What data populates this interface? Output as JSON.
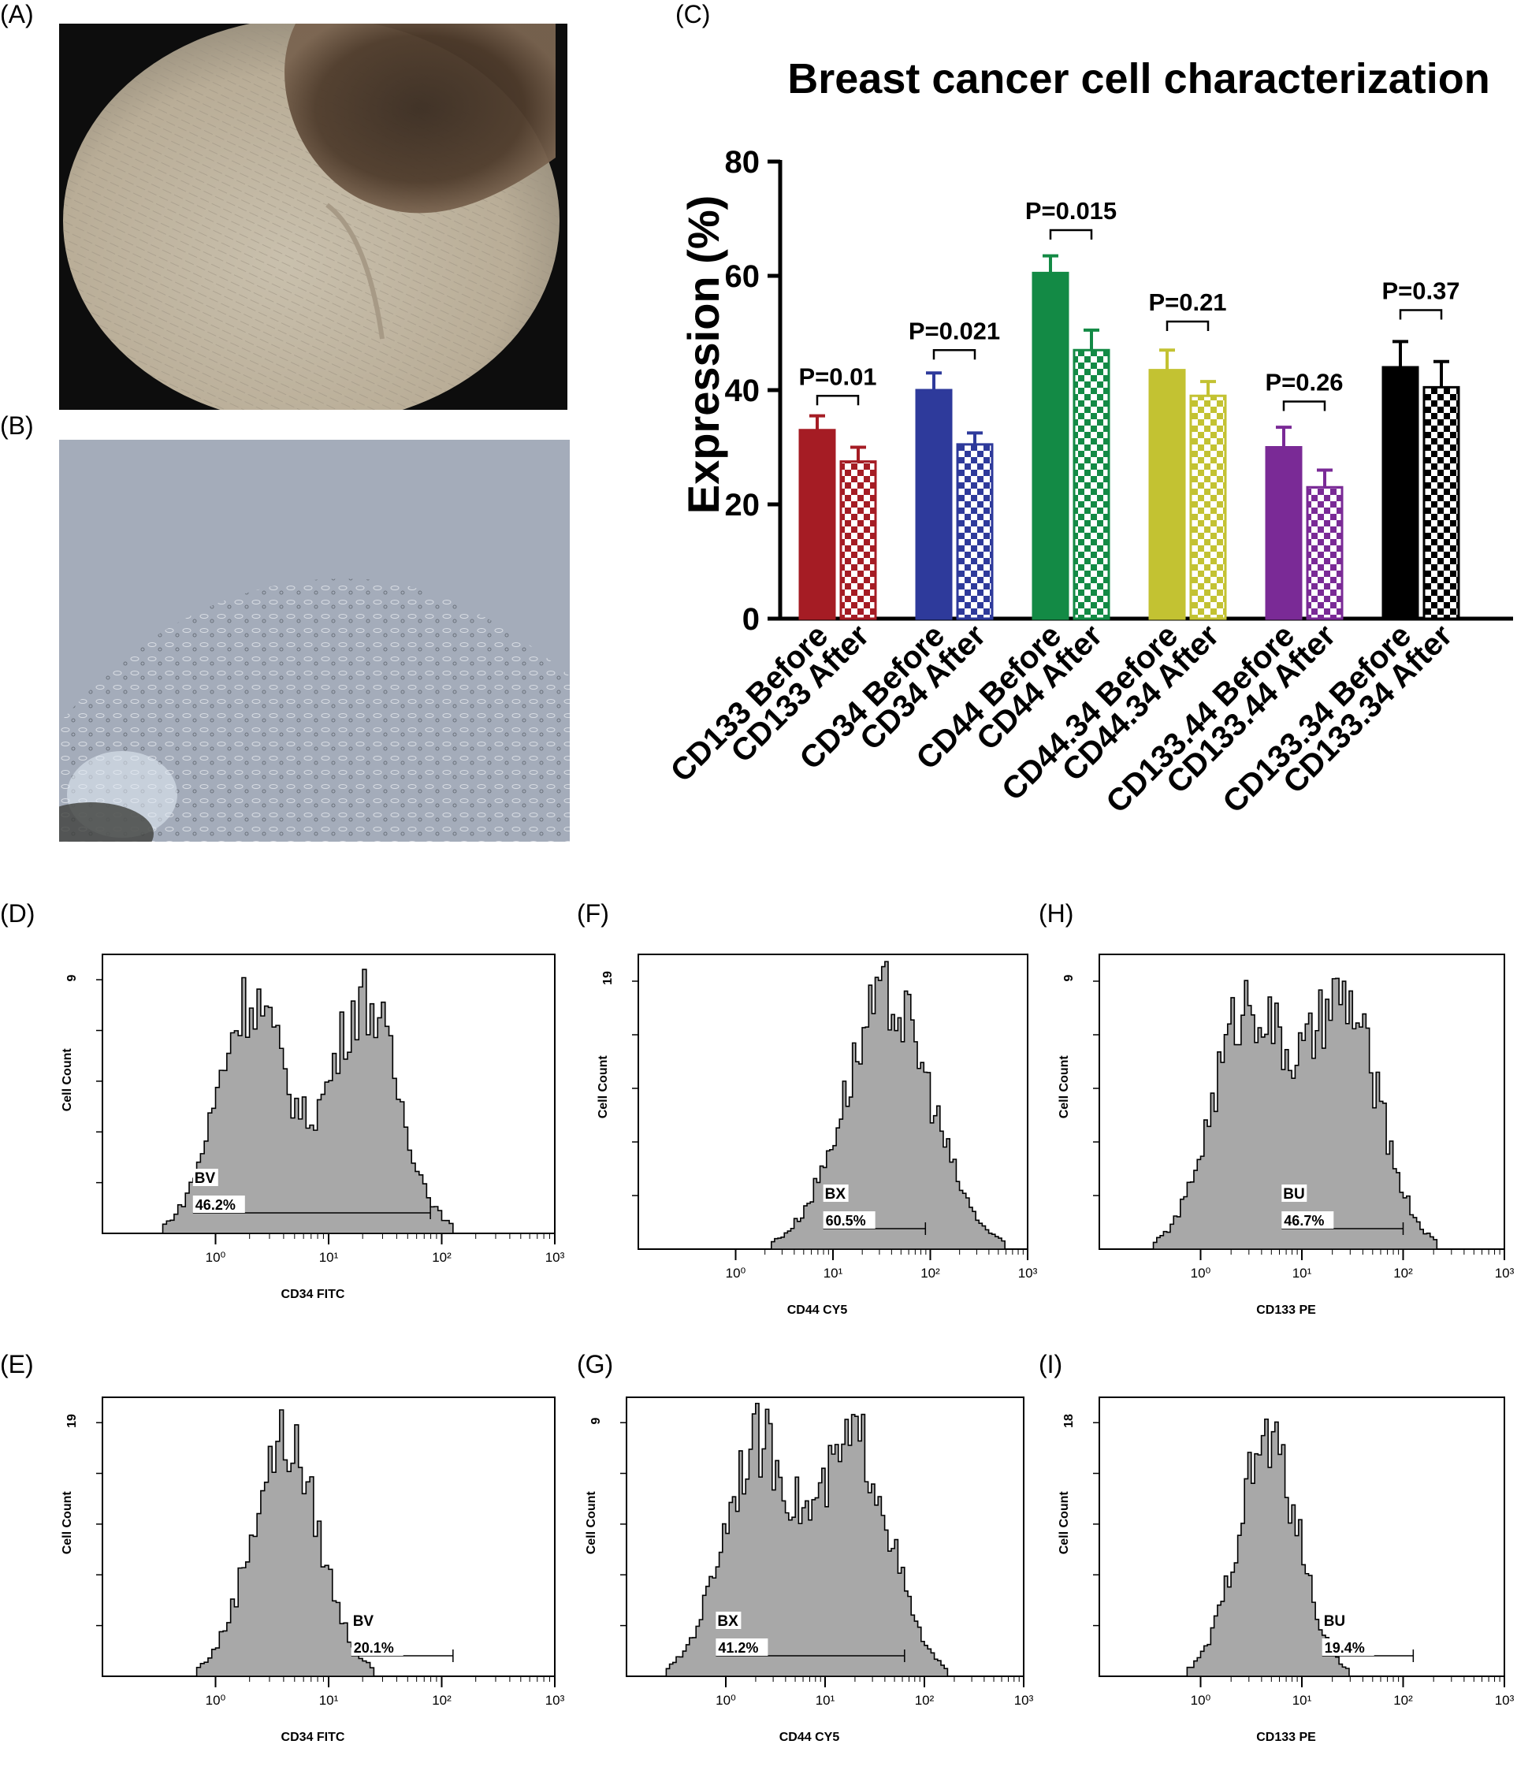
{
  "panels": {
    "A": "(A)",
    "B": "(B)",
    "C": "(C)",
    "D": "(D)",
    "E": "(E)",
    "F": "(F)",
    "G": "(G)",
    "H": "(H)",
    "I": "(I)"
  },
  "colors": {
    "cd133": "#a51c24",
    "cd34": "#2e3a9b",
    "cd44": "#138a45",
    "cd44_34": "#c3c232",
    "cd133_44": "#7a2a96",
    "cd133_34": "#000000",
    "histogram_fill": "#a8a8a8"
  },
  "chart_data": [
    {
      "type": "bar",
      "title": "Breast cancer cell characterization",
      "ylabel": "Expression (%)",
      "ylim": [
        0,
        80
      ],
      "yticks": [
        "0",
        "20",
        "40",
        "60",
        "80"
      ],
      "categories": [
        "CD133 Before",
        "CD133 After",
        "CD34 Before",
        "CD34 After",
        "CD44 Before",
        "CD44 After",
        "CD44.34 Before",
        "CD44.34 After",
        "CD133.44 Before",
        "CD133.44 After",
        "CD133.34 Before",
        "CD133.34 After"
      ],
      "values": [
        33,
        27.5,
        40,
        30.5,
        60.5,
        47,
        43.5,
        39,
        30,
        23,
        44,
        40.5
      ],
      "errors": [
        2.5,
        2.5,
        3,
        2,
        3,
        3.5,
        3.5,
        2.5,
        3.5,
        3,
        4.5,
        4.5
      ],
      "pattern": [
        "solid",
        "checker",
        "solid",
        "checker",
        "solid",
        "checker",
        "solid",
        "checker",
        "solid",
        "checker",
        "solid",
        "checker"
      ],
      "pvalues": [
        "P=0.01",
        "P=0.021",
        "P=0.015",
        "P=0.21",
        "P=0.26",
        "P=0.37"
      ],
      "pbrackets_y": [
        39,
        47,
        68,
        52,
        38,
        54
      ],
      "grid": false
    },
    {
      "type": "area",
      "panel": "D",
      "xlabel": "CD34 FITC",
      "ylabel": "Cell Count",
      "ymax_label": "9",
      "xticks": [
        "10⁰",
        "10¹",
        "10²",
        "10³"
      ],
      "xlim_log10": [
        -1,
        3
      ],
      "gate_name": "BV",
      "gate_value": "46.2%",
      "gate_range_log10": [
        -0.2,
        1.9
      ],
      "peaks_log10": [
        0.3,
        1.3
      ],
      "spread": [
        0.3,
        0.3
      ]
    },
    {
      "type": "area",
      "panel": "E",
      "xlabel": "CD34 FITC",
      "ylabel": "Cell Count",
      "ymax_label": "19",
      "xticks": [
        "10⁰",
        "10¹",
        "10²",
        "10³"
      ],
      "xlim_log10": [
        -1,
        3
      ],
      "gate_name": "BV",
      "gate_value": "20.1%",
      "gate_range_log10": [
        1.2,
        2.1
      ],
      "peaks_log10": [
        0.6
      ],
      "spread": [
        0.3
      ]
    },
    {
      "type": "area",
      "panel": "F",
      "xlabel": "CD44 CY5",
      "ylabel": "Cell Count",
      "ymax_label": "19",
      "xticks": [
        "10⁰",
        "10¹",
        "10²",
        "10³"
      ],
      "xlim_log10": [
        -1,
        3
      ],
      "gate_name": "BX",
      "gate_value": "60.5%",
      "gate_range_log10": [
        0.9,
        1.95
      ],
      "peaks_log10": [
        1.55
      ],
      "spread": [
        0.45
      ]
    },
    {
      "type": "area",
      "panel": "G",
      "xlabel": "CD44 CY5",
      "ylabel": "Cell Count",
      "ymax_label": "9",
      "xticks": [
        "10⁰",
        "10¹",
        "10²",
        "10³"
      ],
      "xlim_log10": [
        -1,
        3
      ],
      "gate_name": "BX",
      "gate_value": "41.2%",
      "gate_range_log10": [
        -0.1,
        1.8
      ],
      "peaks_log10": [
        0.3,
        1.3
      ],
      "spread": [
        0.35,
        0.35
      ]
    },
    {
      "type": "area",
      "panel": "H",
      "xlabel": "CD133 PE",
      "ylabel": "Cell Count",
      "ymax_label": "9",
      "xticks": [
        "10⁰",
        "10¹",
        "10²",
        "10³"
      ],
      "xlim_log10": [
        -1,
        3
      ],
      "gate_name": "BU",
      "gate_value": "46.7%",
      "gate_range_log10": [
        0.8,
        2.0
      ],
      "peaks_log10": [
        0.45,
        1.4
      ],
      "spread": [
        0.35,
        0.35
      ]
    },
    {
      "type": "area",
      "panel": "I",
      "xlabel": "CD133 PE",
      "ylabel": "Cell Count",
      "ymax_label": "18",
      "xticks": [
        "10⁰",
        "10¹",
        "10²",
        "10³"
      ],
      "xlim_log10": [
        -1,
        3
      ],
      "gate_name": "BU",
      "gate_value": "19.4%",
      "gate_range_log10": [
        1.2,
        2.1
      ],
      "peaks_log10": [
        0.65
      ],
      "spread": [
        0.3
      ]
    }
  ]
}
